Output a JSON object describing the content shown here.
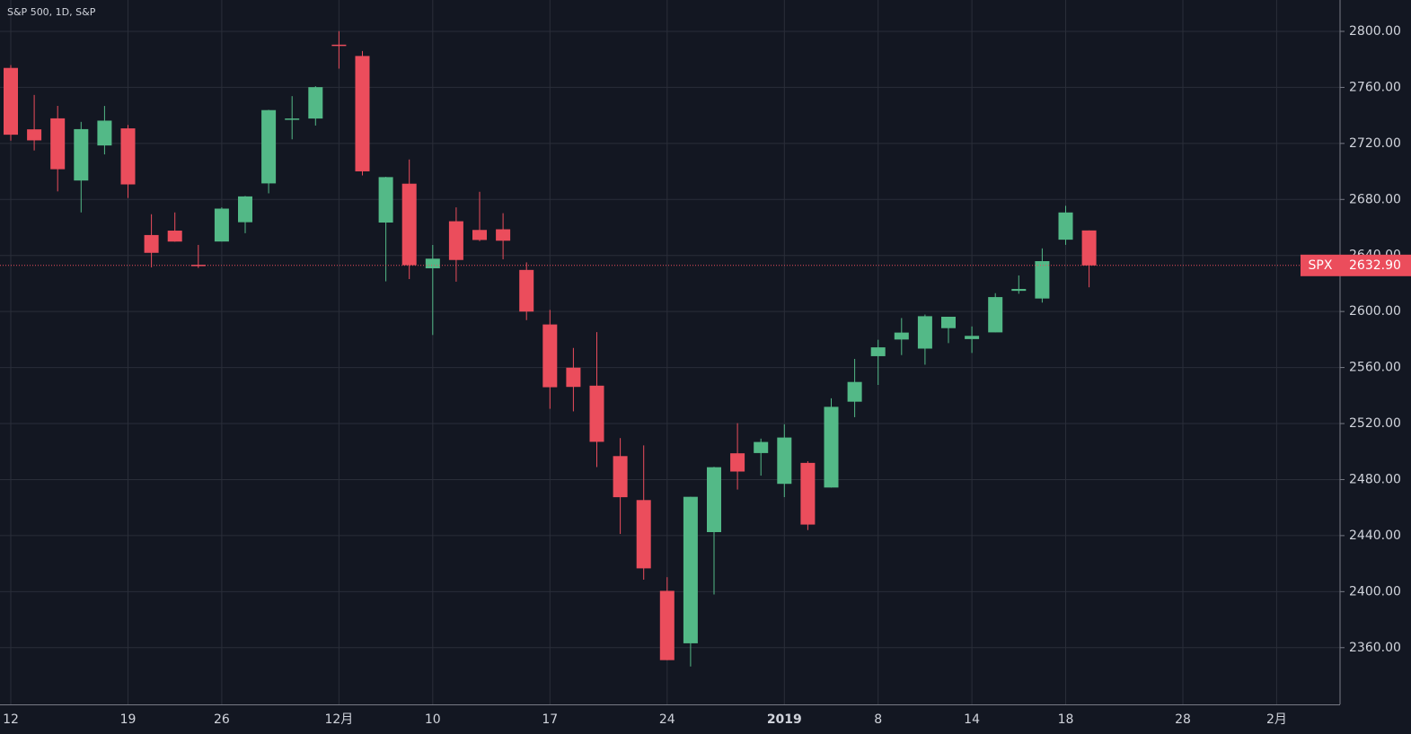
{
  "chart_data": {
    "type": "candlestick",
    "title": "S&P 500, 1D, S&P",
    "categories": [
      "12",
      null,
      null,
      null,
      null,
      "19",
      null,
      null,
      null,
      "26",
      null,
      null,
      null,
      null,
      "12月",
      null,
      null,
      null,
      "10",
      null,
      null,
      null,
      null,
      "17",
      null,
      null,
      null,
      null,
      "24",
      null,
      null,
      null,
      null,
      "2019",
      null,
      null,
      null,
      "8",
      null,
      null,
      null,
      "14",
      null,
      null,
      null,
      "18",
      null,
      null,
      null,
      null,
      "28",
      null,
      null,
      null,
      "2月",
      null,
      null
    ],
    "open": [
      2773.9,
      2730.05,
      2737.9,
      2693.52,
      2718.54,
      2730.74,
      2654.6,
      2657.74,
      2633.36,
      2649.97,
      2663.75,
      2691.45,
      2736.97,
      2737.76,
      2790.5,
      2782.43,
      2663.51,
      2691.26,
      2630.86,
      2664.44,
      2658.23,
      2658.7,
      2629.68,
      2590.75,
      2559.9,
      2547.05,
      2496.77,
      2465.38,
      2400.56,
      2363.12,
      2442.5,
      2498.77,
      2498.94,
      2476.96,
      2491.92,
      2474.33,
      2535.61,
      2568.11,
      2580,
      2573.51,
      2588.11,
      2580.31,
      2585.1,
      2614.75,
      2609.28,
      2651.27,
      2657.88,
      null,
      null,
      null,
      null,
      null,
      null,
      null,
      null,
      null,
      null
    ],
    "high": [
      2775.99,
      2754.6,
      2746.8,
      2735.38,
      2746.75,
      2733.16,
      2669.44,
      2670.73,
      2647.55,
      2674.35,
      2682.53,
      2744,
      2753.75,
      2760.88,
      2800.18,
      2785.93,
      2696.15,
      2708.54,
      2647.51,
      2674.35,
      2685.44,
      2670.19,
      2635.07,
      2601.13,
      2573.99,
      2585.29,
      2509.63,
      2504.41,
      2410.34,
      2467.76,
      2489.1,
      2520.27,
      2509.24,
      2519.49,
      2493.14,
      2538.07,
      2566.16,
      2579.82,
      2595.32,
      2597.82,
      2596.27,
      2589.32,
      2613.08,
      2625.76,
      2645.06,
      2675.47,
      2657.88,
      null,
      null,
      null,
      null,
      null,
      null,
      null,
      null,
      null,
      null
    ],
    "low": [
      2722,
      2714.98,
      2685.75,
      2670.75,
      2712.16,
      2681.09,
      2631.52,
      2649.82,
      2631.09,
      2649.97,
      2655.89,
      2684.38,
      2722.94,
      2732.76,
      2773.38,
      2697.18,
      2621.53,
      2623.14,
      2583.23,
      2621.3,
      2650.26,
      2637.27,
      2593.84,
      2530.54,
      2528.71,
      2488.96,
      2441.18,
      2408.55,
      2351.1,
      2346.58,
      2397.94,
      2472.89,
      2482.82,
      2467.47,
      2443.96,
      2474.33,
      2524.56,
      2547.56,
      2568.89,
      2562.02,
      2577.4,
      2570.41,
      2585.1,
      2612.68,
      2606.36,
      2647.58,
      2617.27,
      null,
      null,
      null,
      null,
      null,
      null,
      null,
      null,
      null,
      null
    ],
    "close": [
      2726.22,
      2722.18,
      2701.58,
      2730.2,
      2736.27,
      2690.73,
      2641.89,
      2649.93,
      2632.56,
      2673.45,
      2682.17,
      2743.79,
      2737.8,
      2760.17,
      2790.37,
      2700.06,
      2695.95,
      2633.08,
      2637.72,
      2636.78,
      2651.07,
      2650.54,
      2599.95,
      2545.94,
      2546.16,
      2506.96,
      2467.42,
      2416.62,
      2351.1,
      2467.7,
      2488.83,
      2485.74,
      2506.85,
      2510.03,
      2447.89,
      2531.94,
      2549.69,
      2574.41,
      2584.96,
      2596.64,
      2596.26,
      2582.61,
      2610.3,
      2616.1,
      2635.96,
      2670.71,
      2632.9,
      null,
      null,
      null,
      null,
      null,
      null,
      null,
      null,
      null,
      null
    ],
    "up_color": "#53b987",
    "down_color": "#eb4d5c",
    "ylim": [
      2319.5,
      2822.4
    ],
    "yticks": [
      {
        "value": 2360,
        "label": "2360.00"
      },
      {
        "value": 2400,
        "label": "2400.00"
      },
      {
        "value": 2440,
        "label": "2440.00"
      },
      {
        "value": 2480,
        "label": "2480.00"
      },
      {
        "value": 2520,
        "label": "2520.00"
      },
      {
        "value": 2560,
        "label": "2560.00"
      },
      {
        "value": 2600,
        "label": "2600.00"
      },
      {
        "value": 2640,
        "label": "2640.00"
      },
      {
        "value": 2680,
        "label": "2680.00"
      },
      {
        "value": 2720,
        "label": "2720.00"
      },
      {
        "value": 2760,
        "label": "2760.00"
      },
      {
        "value": 2800,
        "label": "2800.00"
      }
    ],
    "grid": true,
    "last_price": {
      "symbol": "SPX",
      "value": 2632.9,
      "label": "2632.90"
    }
  }
}
